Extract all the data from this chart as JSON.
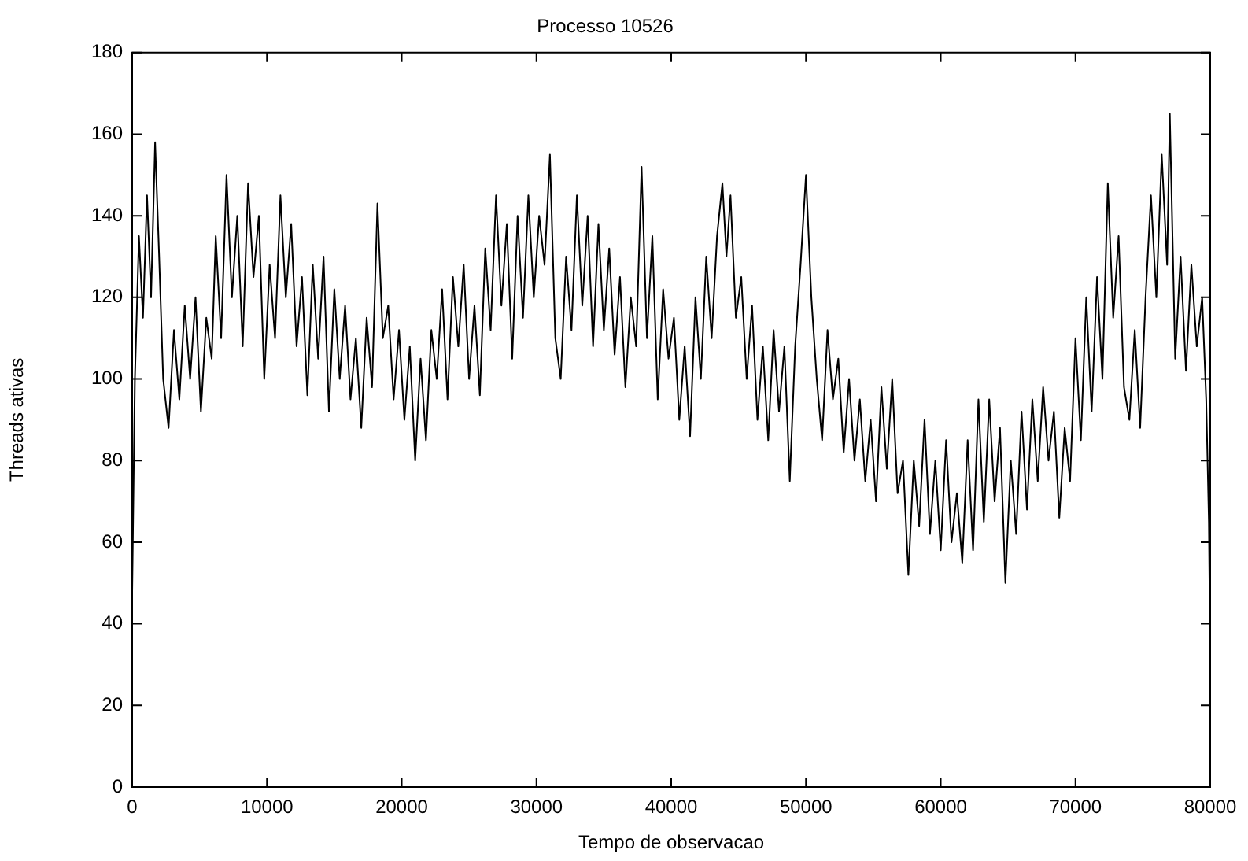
{
  "chart_data": {
    "type": "line",
    "title": "Processo 10526",
    "xlabel": "Tempo de observacao",
    "ylabel": "Threads ativas",
    "xlim": [
      0,
      80000
    ],
    "xticks": [
      0,
      10000,
      20000,
      30000,
      40000,
      50000,
      60000,
      70000,
      80000
    ],
    "ylim": [
      0,
      180
    ],
    "yticks": [
      0,
      20,
      40,
      60,
      80,
      100,
      120,
      140,
      160,
      180
    ],
    "grid": false,
    "legend": false,
    "marker": "none",
    "line_style": "solid",
    "x": [
      0,
      200,
      500,
      800,
      1100,
      1400,
      1700,
      2000,
      2300,
      2700,
      3100,
      3500,
      3900,
      4300,
      4700,
      5100,
      5500,
      5900,
      6200,
      6600,
      7000,
      7400,
      7800,
      8200,
      8600,
      9000,
      9400,
      9800,
      10200,
      10600,
      11000,
      11400,
      11800,
      12200,
      12600,
      13000,
      13400,
      13800,
      14200,
      14600,
      15000,
      15400,
      15800,
      16200,
      16600,
      17000,
      17400,
      17800,
      18200,
      18600,
      19000,
      19400,
      19800,
      20200,
      20600,
      21000,
      21400,
      21800,
      22200,
      22600,
      23000,
      23400,
      23800,
      24200,
      24600,
      25000,
      25400,
      25800,
      26200,
      26600,
      27000,
      27400,
      27800,
      28200,
      28600,
      29000,
      29400,
      29800,
      30200,
      30600,
      31000,
      31400,
      31800,
      32200,
      32600,
      33000,
      33400,
      33800,
      34200,
      34600,
      35000,
      35400,
      35800,
      36200,
      36600,
      37000,
      37400,
      37800,
      38200,
      38600,
      39000,
      39400,
      39800,
      40200,
      40600,
      41000,
      41400,
      41800,
      42200,
      42600,
      43000,
      43400,
      43800,
      44100,
      44400,
      44800,
      45200,
      45600,
      46000,
      46400,
      46800,
      47200,
      47600,
      48000,
      48400,
      48800,
      49200,
      49600,
      50000,
      50400,
      50800,
      51200,
      51600,
      52000,
      52400,
      52800,
      53200,
      53600,
      54000,
      54400,
      54800,
      55200,
      55600,
      56000,
      56400,
      56800,
      57200,
      57600,
      58000,
      58400,
      58800,
      59200,
      59600,
      60000,
      60400,
      60800,
      61200,
      61600,
      62000,
      62400,
      62800,
      63200,
      63600,
      64000,
      64400,
      64800,
      65200,
      65600,
      66000,
      66400,
      66800,
      67200,
      67600,
      68000,
      68400,
      68800,
      69200,
      69600,
      70000,
      70400,
      70800,
      71200,
      71600,
      72000,
      72400,
      72800,
      73200,
      73600,
      74000,
      74400,
      74800,
      75200,
      75600,
      76000,
      76400,
      76800,
      77000,
      77400,
      77800,
      78200,
      78600,
      79000,
      79400,
      79700,
      79900,
      80000
    ],
    "series": [
      {
        "color": "#000000",
        "values": [
          48,
          100,
          135,
          115,
          145,
          120,
          158,
          130,
          100,
          88,
          112,
          95,
          118,
          100,
          120,
          92,
          115,
          105,
          135,
          110,
          150,
          120,
          140,
          108,
          148,
          125,
          140,
          100,
          128,
          110,
          145,
          120,
          138,
          108,
          125,
          96,
          128,
          105,
          130,
          92,
          122,
          100,
          118,
          95,
          110,
          88,
          115,
          98,
          143,
          110,
          118,
          95,
          112,
          90,
          108,
          80,
          105,
          85,
          112,
          100,
          122,
          95,
          125,
          108,
          128,
          100,
          118,
          96,
          132,
          112,
          145,
          118,
          138,
          105,
          140,
          115,
          145,
          120,
          140,
          128,
          155,
          110,
          100,
          130,
          112,
          145,
          118,
          140,
          108,
          138,
          112,
          132,
          106,
          125,
          98,
          120,
          108,
          152,
          110,
          135,
          95,
          122,
          105,
          115,
          90,
          108,
          86,
          120,
          100,
          130,
          110,
          135,
          148,
          130,
          145,
          115,
          125,
          100,
          118,
          90,
          108,
          85,
          112,
          92,
          108,
          75,
          108,
          128,
          150,
          120,
          100,
          85,
          112,
          95,
          105,
          82,
          100,
          80,
          95,
          75,
          90,
          70,
          98,
          78,
          100,
          72,
          80,
          52,
          80,
          64,
          90,
          62,
          80,
          58,
          85,
          60,
          72,
          55,
          85,
          58,
          95,
          65,
          95,
          70,
          88,
          50,
          80,
          62,
          92,
          68,
          95,
          75,
          98,
          80,
          92,
          66,
          88,
          75,
          110,
          85,
          120,
          92,
          125,
          100,
          148,
          115,
          135,
          98,
          90,
          112,
          88,
          120,
          145,
          120,
          155,
          128,
          165,
          105,
          130,
          102,
          128,
          108,
          120,
          95,
          65,
          30
        ]
      }
    ]
  }
}
